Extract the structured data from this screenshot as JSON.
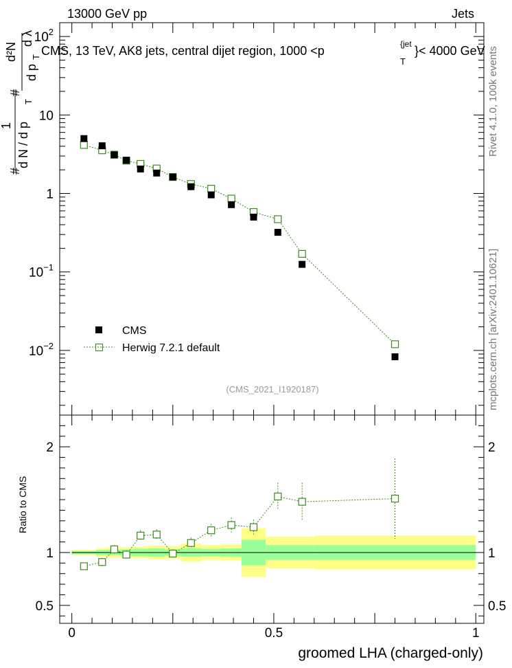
{
  "header": {
    "left": "13000 GeV pp",
    "right": "Jets"
  },
  "side_labels": {
    "version": "Rivet 4.1.0,  100k events",
    "source": "mcplots.cern.ch [arXiv:2401.10621]"
  },
  "chart_data": [
    {
      "type": "scatter",
      "panel": "main",
      "title": "CMS, 13 TeV, AK8 jets, central dijet region, 1000 <p",
      "title_sub": "T",
      "title_sup": "{jet",
      "title_tail": "}< 4000 GeV",
      "ylabel": "1/dN/dpT dN²/dpT dλ",
      "ylabel_parts": {
        "num1": "1",
        "den1": "d N / d p",
        "num2": "d²N",
        "den2": "d p",
        "dlambda": "d λ",
        "hash": "#",
        "sub": "T"
      },
      "yscale": "log",
      "xlim": [
        -0.03,
        1.02
      ],
      "ylim": [
        0.0015,
        150
      ],
      "y_tick_labels": [
        {
          "value": 100,
          "base": "10",
          "exp": "2"
        },
        {
          "value": 10,
          "base": "10",
          "exp": ""
        },
        {
          "value": 1,
          "base": "1",
          "exp": ""
        },
        {
          "value": 0.1,
          "base": "10",
          "exp": "−1"
        },
        {
          "value": 0.01,
          "base": "10",
          "exp": "−2"
        }
      ],
      "watermark": "(CMS_2021_I1920187)",
      "legend": [
        {
          "name": "CMS",
          "marker": "filled-square",
          "color": "#000000"
        },
        {
          "name": "Herwig 7.2.1 default",
          "marker": "open-square",
          "color": "#3a8a1a"
        }
      ],
      "series": [
        {
          "name": "CMS",
          "x": [
            0.03,
            0.075,
            0.105,
            0.135,
            0.17,
            0.21,
            0.25,
            0.295,
            0.345,
            0.395,
            0.45,
            0.51,
            0.57,
            0.8
          ],
          "y": [
            5.0,
            4.05,
            3.1,
            2.65,
            2.05,
            1.82,
            1.62,
            1.22,
            0.96,
            0.72,
            0.5,
            0.32,
            0.125,
            0.0083
          ]
        },
        {
          "name": "Herwig 7.2.1 default",
          "x": [
            0.03,
            0.075,
            0.105,
            0.135,
            0.17,
            0.21,
            0.25,
            0.295,
            0.345,
            0.395,
            0.45,
            0.51,
            0.57,
            0.8
          ],
          "y": [
            4.15,
            3.55,
            3.12,
            2.62,
            2.38,
            2.08,
            1.62,
            1.32,
            1.15,
            0.86,
            0.58,
            0.47,
            0.17,
            0.012
          ]
        }
      ]
    },
    {
      "type": "line",
      "panel": "ratio",
      "ylabel": "Ratio to CMS",
      "xlabel": "groomed LHA (charged-only)",
      "xlim": [
        -0.03,
        1.02
      ],
      "ylim": [
        0.33,
        2.3
      ],
      "x_ticks": [
        0,
        0.5,
        1
      ],
      "x_tick_labels": [
        "0",
        "0.5",
        "1"
      ],
      "y_ticks": [
        0.5,
        1,
        2
      ],
      "y_tick_labels": [
        "0.5",
        "1",
        "2"
      ],
      "bands": {
        "edges": [
          0,
          0.06,
          0.09,
          0.12,
          0.15,
          0.19,
          0.23,
          0.27,
          0.32,
          0.37,
          0.42,
          0.48,
          0.54,
          0.6,
          1.0
        ],
        "inner_lo": [
          0.985,
          0.975,
          0.975,
          0.97,
          0.965,
          0.96,
          0.97,
          0.96,
          0.965,
          0.96,
          0.88,
          0.93,
          0.93,
          0.93
        ],
        "inner_hi": [
          1.015,
          1.025,
          1.025,
          1.03,
          1.035,
          1.04,
          1.03,
          1.04,
          1.035,
          1.04,
          1.12,
          1.07,
          1.07,
          1.07
        ],
        "outer_lo": [
          0.975,
          0.96,
          0.95,
          0.95,
          0.945,
          0.935,
          0.94,
          0.915,
          0.93,
          0.925,
          0.77,
          0.85,
          0.85,
          0.84
        ],
        "outer_hi": [
          1.025,
          1.04,
          1.05,
          1.05,
          1.055,
          1.065,
          1.06,
          1.085,
          1.07,
          1.075,
          1.23,
          1.15,
          1.15,
          1.16
        ],
        "inner_color": "#99ff99",
        "outer_color": "#ffff88"
      },
      "series": [
        {
          "name": "Herwig 7.2.1 default",
          "x": [
            0.03,
            0.075,
            0.105,
            0.135,
            0.17,
            0.21,
            0.25,
            0.295,
            0.345,
            0.395,
            0.45,
            0.51,
            0.57,
            0.8
          ],
          "y": [
            0.87,
            0.91,
            1.03,
            0.98,
            1.16,
            1.17,
            0.99,
            1.09,
            1.21,
            1.26,
            1.24,
            1.53,
            1.48,
            1.51
          ],
          "err": [
            0.02,
            0.04,
            0.04,
            0.04,
            0.05,
            0.05,
            0.04,
            0.05,
            0.06,
            0.07,
            0.07,
            0.13,
            0.18,
            0.38
          ],
          "color": "#3a8a1a"
        }
      ]
    }
  ]
}
